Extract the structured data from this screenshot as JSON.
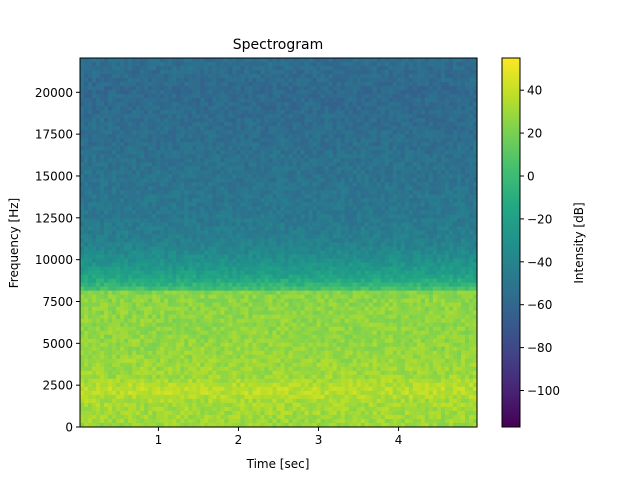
{
  "chart_data": {
    "type": "heatmap",
    "title": "Spectrogram",
    "xlabel": "Time [sec]",
    "ylabel": "Frequency [Hz]",
    "xlim": [
      0.02,
      4.98
    ],
    "ylim": [
      0,
      22050
    ],
    "x_ticks": [
      1,
      2,
      3,
      4
    ],
    "y_ticks": [
      0,
      2500,
      5000,
      7500,
      10000,
      12500,
      15000,
      17500,
      20000
    ],
    "colorbar": {
      "label": "Intensity [dB]",
      "range": [
        -117,
        55
      ],
      "ticks": [
        -100,
        -80,
        -60,
        -40,
        -20,
        0,
        20,
        40
      ],
      "colormap": "viridis"
    },
    "spectrum_profile": {
      "frequency_hz": [
        0,
        500,
        1500,
        2200,
        3000,
        5000,
        7000,
        8000,
        8300,
        9000,
        10000,
        11000,
        12500,
        15000,
        17500,
        20000,
        22050
      ],
      "intensity_db": [
        28,
        30,
        32,
        38,
        30,
        27,
        26,
        25,
        0,
        -18,
        -32,
        -42,
        -48,
        -52,
        -55,
        -58,
        -55
      ]
    },
    "grid": false,
    "legend": "none"
  }
}
